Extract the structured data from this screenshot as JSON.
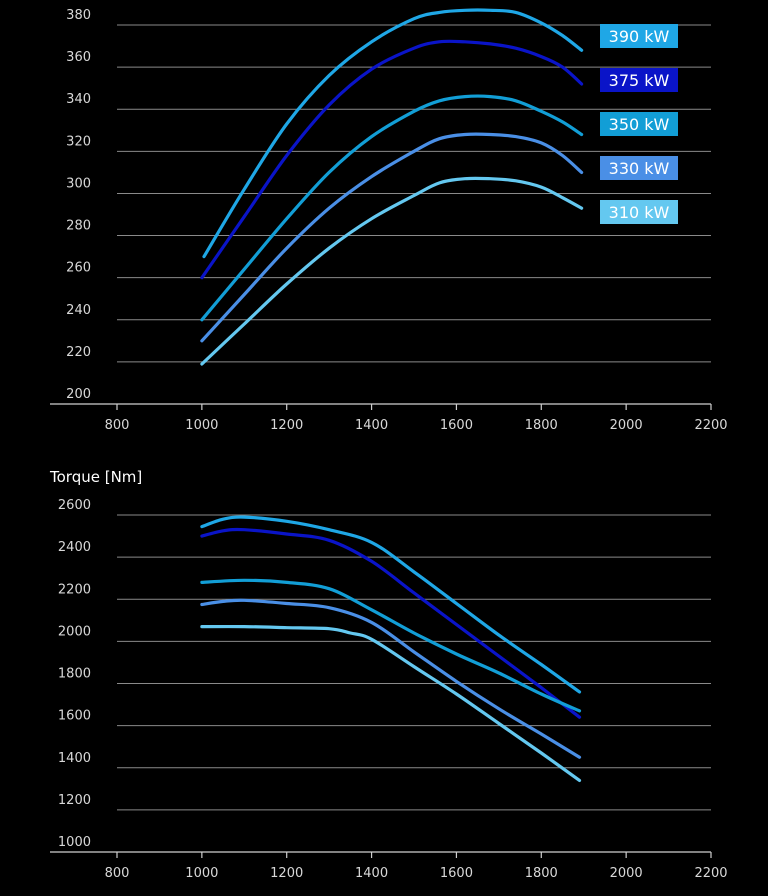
{
  "chart_data": [
    {
      "type": "line",
      "title": "",
      "xlabel": "",
      "ylabel": "",
      "xlim": [
        800,
        2200
      ],
      "ylim": [
        200,
        380
      ],
      "x_ticks": [
        "800",
        "1000",
        "1200",
        "1400",
        "1600",
        "1800",
        "2000",
        "2200"
      ],
      "y_ticks": [
        "200",
        "220",
        "240",
        "260",
        "280",
        "300",
        "320",
        "340",
        "360",
        "380"
      ],
      "legend_labels": [
        "390 kW",
        "375 kW",
        "350 kW",
        "330 kW",
        "310 kW"
      ],
      "series": [
        {
          "name": "390 kW",
          "color": "#1fa7e6",
          "x": [
            1005,
            1100,
            1200,
            1300,
            1400,
            1500,
            1560,
            1620,
            1680,
            1740,
            1800,
            1850,
            1895
          ],
          "y": [
            270,
            302,
            333,
            356,
            372,
            383,
            386,
            387,
            387,
            386,
            381,
            375,
            368
          ]
        },
        {
          "name": "375 kW",
          "color": "#0a14c8",
          "x": [
            1000,
            1100,
            1200,
            1300,
            1400,
            1500,
            1560,
            1620,
            1680,
            1740,
            1800,
            1850,
            1895
          ],
          "y": [
            260,
            289,
            318,
            342,
            359,
            369,
            372,
            372,
            371,
            369,
            365,
            360,
            352
          ]
        },
        {
          "name": "350 kW",
          "color": "#129ed6",
          "x": [
            1000,
            1100,
            1200,
            1300,
            1400,
            1500,
            1560,
            1620,
            1680,
            1740,
            1800,
            1850,
            1895
          ],
          "y": [
            240,
            264,
            288,
            310,
            327,
            339,
            344,
            346,
            346,
            344,
            339,
            334,
            328
          ]
        },
        {
          "name": "330 kW",
          "color": "#4a8fe6",
          "x": [
            1000,
            1100,
            1200,
            1300,
            1400,
            1500,
            1560,
            1620,
            1680,
            1740,
            1800,
            1850,
            1895
          ],
          "y": [
            230,
            252,
            274,
            293,
            308,
            320,
            326,
            328,
            328,
            327,
            324,
            318,
            310
          ]
        },
        {
          "name": "310 kW",
          "color": "#64c8f0",
          "x": [
            1000,
            1100,
            1200,
            1300,
            1400,
            1500,
            1560,
            1620,
            1680,
            1740,
            1800,
            1850,
            1895
          ],
          "y": [
            219,
            238,
            257,
            274,
            288,
            299,
            305,
            307,
            307,
            306,
            303,
            298,
            293
          ]
        }
      ]
    },
    {
      "type": "line",
      "title": "Torque  [Nm]",
      "xlabel": "",
      "ylabel": "Torque  [Nm]",
      "xlim": [
        800,
        2200
      ],
      "ylim": [
        1000,
        2600
      ],
      "x_ticks": [
        "800",
        "1000",
        "1200",
        "1400",
        "1600",
        "1800",
        "2000",
        "2200"
      ],
      "y_ticks": [
        "1000",
        "1200",
        "1400",
        "1600",
        "1800",
        "2000",
        "2200",
        "2400",
        "2600"
      ],
      "series": [
        {
          "name": "390 kW",
          "color": "#1fa7e6",
          "x": [
            1000,
            1050,
            1100,
            1200,
            1300,
            1400,
            1500,
            1600,
            1700,
            1800,
            1890
          ],
          "y": [
            2545,
            2580,
            2590,
            2570,
            2530,
            2470,
            2330,
            2180,
            2030,
            1890,
            1760
          ]
        },
        {
          "name": "375 kW",
          "color": "#0a14c8",
          "x": [
            1000,
            1050,
            1100,
            1200,
            1300,
            1400,
            1500,
            1600,
            1700,
            1800,
            1890
          ],
          "y": [
            2500,
            2525,
            2530,
            2510,
            2480,
            2380,
            2230,
            2080,
            1930,
            1780,
            1640
          ]
        },
        {
          "name": "350 kW",
          "color": "#129ed6",
          "x": [
            1000,
            1100,
            1200,
            1300,
            1400,
            1500,
            1600,
            1700,
            1800,
            1890
          ],
          "y": [
            2280,
            2290,
            2280,
            2250,
            2150,
            2040,
            1940,
            1850,
            1750,
            1670
          ]
        },
        {
          "name": "330 kW",
          "color": "#4a8fe6",
          "x": [
            1000,
            1050,
            1100,
            1200,
            1300,
            1400,
            1500,
            1600,
            1700,
            1800,
            1890
          ],
          "y": [
            2175,
            2190,
            2195,
            2180,
            2160,
            2090,
            1950,
            1810,
            1680,
            1560,
            1450
          ]
        },
        {
          "name": "310 kW",
          "color": "#64c8f0",
          "x": [
            1000,
            1100,
            1200,
            1300,
            1350,
            1400,
            1500,
            1600,
            1700,
            1800,
            1890
          ],
          "y": [
            2070,
            2070,
            2065,
            2060,
            2040,
            2010,
            1880,
            1750,
            1610,
            1470,
            1340
          ]
        }
      ]
    }
  ]
}
